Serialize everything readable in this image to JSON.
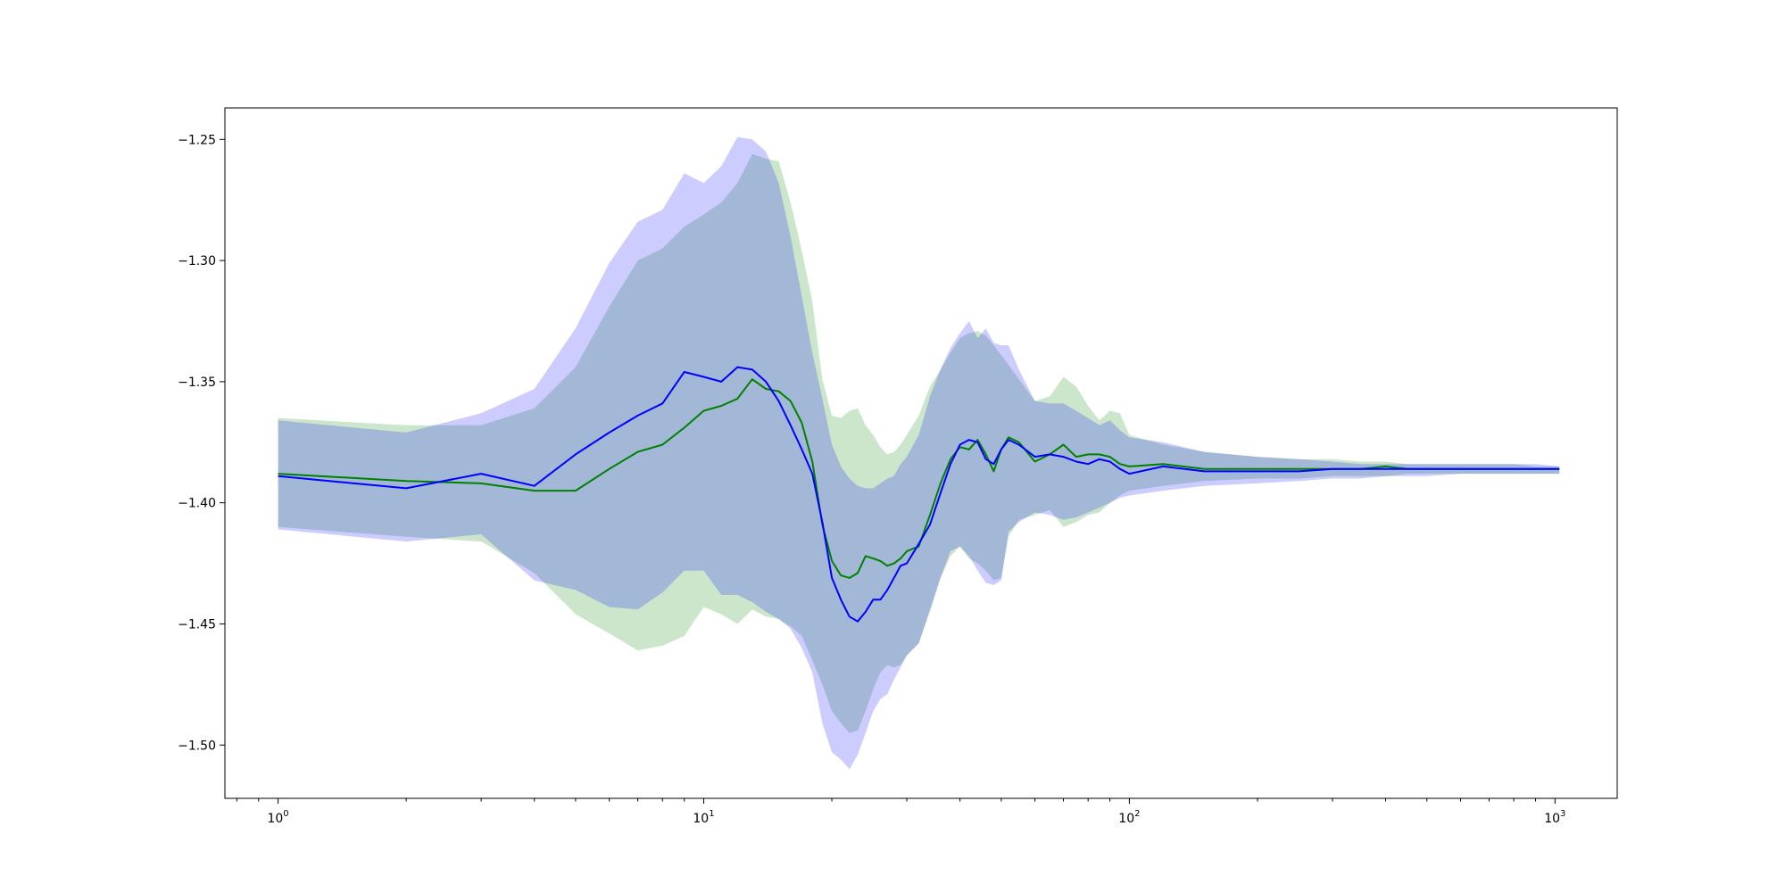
{
  "chart_data": {
    "type": "line",
    "title": "",
    "xlabel": "",
    "ylabel": "",
    "x_scale": "log",
    "xlim": [
      0.75,
      1400
    ],
    "ylim": [
      -1.522,
      -1.237
    ],
    "grid": false,
    "x_ticks": [
      {
        "value": 1,
        "base": "10",
        "exp": "0"
      },
      {
        "value": 10,
        "base": "10",
        "exp": "1"
      },
      {
        "value": 100,
        "base": "10",
        "exp": "2"
      },
      {
        "value": 1000,
        "base": "10",
        "exp": "3"
      }
    ],
    "y_ticks": [
      {
        "value": -1.25,
        "label": "−1.25"
      },
      {
        "value": -1.3,
        "label": "−1.30"
      },
      {
        "value": -1.35,
        "label": "−1.35"
      },
      {
        "value": -1.4,
        "label": "−1.40"
      },
      {
        "value": -1.45,
        "label": "−1.45"
      },
      {
        "value": -1.5,
        "label": "−1.50"
      }
    ],
    "series": [
      {
        "color": "#008000",
        "band_color": "#008000",
        "x": [
          1,
          2,
          3,
          4,
          5,
          6,
          7,
          8,
          9,
          10,
          11,
          12,
          13,
          14,
          15,
          16,
          17,
          18,
          19,
          20,
          21,
          22,
          23,
          24,
          25,
          26,
          27,
          28,
          29,
          30,
          32,
          34,
          36,
          38,
          40,
          42,
          44,
          46,
          48,
          50,
          52,
          55,
          60,
          65,
          70,
          75,
          80,
          85,
          90,
          95,
          100,
          120,
          150,
          200,
          250,
          300,
          350,
          400,
          450,
          500,
          600,
          700,
          800,
          900,
          1024
        ],
        "y": [
          -1.388,
          -1.391,
          -1.392,
          -1.395,
          -1.395,
          -1.386,
          -1.379,
          -1.376,
          -1.369,
          -1.362,
          -1.36,
          -1.357,
          -1.349,
          -1.353,
          -1.354,
          -1.358,
          -1.367,
          -1.383,
          -1.409,
          -1.424,
          -1.43,
          -1.431,
          -1.429,
          -1.422,
          -1.423,
          -1.424,
          -1.426,
          -1.425,
          -1.423,
          -1.42,
          -1.418,
          -1.405,
          -1.392,
          -1.382,
          -1.377,
          -1.378,
          -1.374,
          -1.38,
          -1.387,
          -1.378,
          -1.373,
          -1.375,
          -1.383,
          -1.38,
          -1.376,
          -1.381,
          -1.38,
          -1.38,
          -1.381,
          -1.384,
          -1.385,
          -1.384,
          -1.386,
          -1.386,
          -1.386,
          -1.386,
          -1.386,
          -1.385,
          -1.386,
          -1.386,
          -1.386,
          -1.386,
          -1.386,
          -1.386,
          -1.386
        ],
        "upper": [
          -1.365,
          -1.368,
          -1.368,
          -1.361,
          -1.344,
          -1.319,
          -1.3,
          -1.295,
          -1.286,
          -1.281,
          -1.276,
          -1.268,
          -1.256,
          -1.258,
          -1.259,
          -1.276,
          -1.296,
          -1.317,
          -1.349,
          -1.364,
          -1.365,
          -1.362,
          -1.361,
          -1.368,
          -1.372,
          -1.377,
          -1.38,
          -1.379,
          -1.376,
          -1.372,
          -1.364,
          -1.352,
          -1.345,
          -1.338,
          -1.332,
          -1.33,
          -1.329,
          -1.331,
          -1.335,
          -1.339,
          -1.343,
          -1.349,
          -1.358,
          -1.356,
          -1.348,
          -1.352,
          -1.36,
          -1.366,
          -1.362,
          -1.363,
          -1.372,
          -1.376,
          -1.379,
          -1.381,
          -1.382,
          -1.382,
          -1.383,
          -1.383,
          -1.384,
          -1.384,
          -1.384,
          -1.384,
          -1.384,
          -1.385,
          -1.385
        ],
        "lower": [
          -1.41,
          -1.414,
          -1.416,
          -1.429,
          -1.446,
          -1.454,
          -1.461,
          -1.459,
          -1.455,
          -1.443,
          -1.446,
          -1.45,
          -1.444,
          -1.447,
          -1.448,
          -1.451,
          -1.455,
          -1.465,
          -1.475,
          -1.486,
          -1.491,
          -1.495,
          -1.494,
          -1.486,
          -1.477,
          -1.47,
          -1.467,
          -1.468,
          -1.467,
          -1.463,
          -1.458,
          -1.445,
          -1.431,
          -1.422,
          -1.418,
          -1.423,
          -1.425,
          -1.428,
          -1.432,
          -1.431,
          -1.414,
          -1.407,
          -1.405,
          -1.403,
          -1.41,
          -1.408,
          -1.405,
          -1.404,
          -1.4,
          -1.397,
          -1.395,
          -1.393,
          -1.391,
          -1.39,
          -1.39,
          -1.389,
          -1.389,
          -1.389,
          -1.388,
          -1.388,
          -1.388,
          -1.388,
          -1.388,
          -1.388,
          -1.388
        ]
      },
      {
        "color": "#0000ff",
        "band_color": "#0000ff",
        "x": [
          1,
          2,
          3,
          4,
          5,
          6,
          7,
          8,
          9,
          10,
          11,
          12,
          13,
          14,
          15,
          16,
          17,
          18,
          19,
          20,
          21,
          22,
          23,
          24,
          25,
          26,
          27,
          28,
          29,
          30,
          32,
          34,
          36,
          38,
          40,
          42,
          44,
          46,
          48,
          50,
          52,
          55,
          60,
          65,
          70,
          75,
          80,
          85,
          90,
          95,
          100,
          120,
          150,
          200,
          250,
          300,
          350,
          400,
          450,
          500,
          600,
          700,
          800,
          900,
          1024
        ],
        "y": [
          -1.389,
          -1.394,
          -1.388,
          -1.393,
          -1.38,
          -1.371,
          -1.364,
          -1.359,
          -1.346,
          -1.348,
          -1.35,
          -1.344,
          -1.345,
          -1.35,
          -1.358,
          -1.368,
          -1.378,
          -1.388,
          -1.408,
          -1.431,
          -1.44,
          -1.447,
          -1.449,
          -1.445,
          -1.44,
          -1.44,
          -1.436,
          -1.431,
          -1.426,
          -1.425,
          -1.417,
          -1.409,
          -1.396,
          -1.384,
          -1.376,
          -1.374,
          -1.375,
          -1.382,
          -1.384,
          -1.378,
          -1.374,
          -1.376,
          -1.381,
          -1.38,
          -1.381,
          -1.383,
          -1.384,
          -1.382,
          -1.383,
          -1.386,
          -1.388,
          -1.385,
          -1.387,
          -1.387,
          -1.387,
          -1.386,
          -1.386,
          -1.386,
          -1.386,
          -1.386,
          -1.386,
          -1.386,
          -1.386,
          -1.386,
          -1.386
        ],
        "upper": [
          -1.366,
          -1.371,
          -1.363,
          -1.353,
          -1.328,
          -1.301,
          -1.284,
          -1.279,
          -1.264,
          -1.268,
          -1.261,
          -1.249,
          -1.25,
          -1.255,
          -1.268,
          -1.29,
          -1.315,
          -1.338,
          -1.357,
          -1.376,
          -1.385,
          -1.39,
          -1.393,
          -1.394,
          -1.394,
          -1.392,
          -1.39,
          -1.389,
          -1.384,
          -1.381,
          -1.372,
          -1.356,
          -1.345,
          -1.336,
          -1.33,
          -1.325,
          -1.332,
          -1.328,
          -1.334,
          -1.335,
          -1.335,
          -1.345,
          -1.358,
          -1.359,
          -1.359,
          -1.362,
          -1.365,
          -1.368,
          -1.366,
          -1.37,
          -1.373,
          -1.375,
          -1.379,
          -1.381,
          -1.382,
          -1.383,
          -1.384,
          -1.384,
          -1.384,
          -1.384,
          -1.384,
          -1.384,
          -1.384,
          -1.384,
          -1.385
        ],
        "lower": [
          -1.411,
          -1.416,
          -1.413,
          -1.432,
          -1.436,
          -1.443,
          -1.444,
          -1.437,
          -1.428,
          -1.428,
          -1.438,
          -1.438,
          -1.441,
          -1.445,
          -1.448,
          -1.452,
          -1.46,
          -1.47,
          -1.491,
          -1.503,
          -1.506,
          -1.51,
          -1.504,
          -1.495,
          -1.486,
          -1.481,
          -1.479,
          -1.473,
          -1.468,
          -1.463,
          -1.458,
          -1.444,
          -1.431,
          -1.42,
          -1.418,
          -1.422,
          -1.428,
          -1.433,
          -1.434,
          -1.432,
          -1.412,
          -1.408,
          -1.404,
          -1.405,
          -1.407,
          -1.406,
          -1.404,
          -1.402,
          -1.4,
          -1.398,
          -1.397,
          -1.395,
          -1.393,
          -1.392,
          -1.391,
          -1.39,
          -1.39,
          -1.389,
          -1.389,
          -1.389,
          -1.388,
          -1.388,
          -1.388,
          -1.388,
          -1.388
        ]
      }
    ]
  }
}
